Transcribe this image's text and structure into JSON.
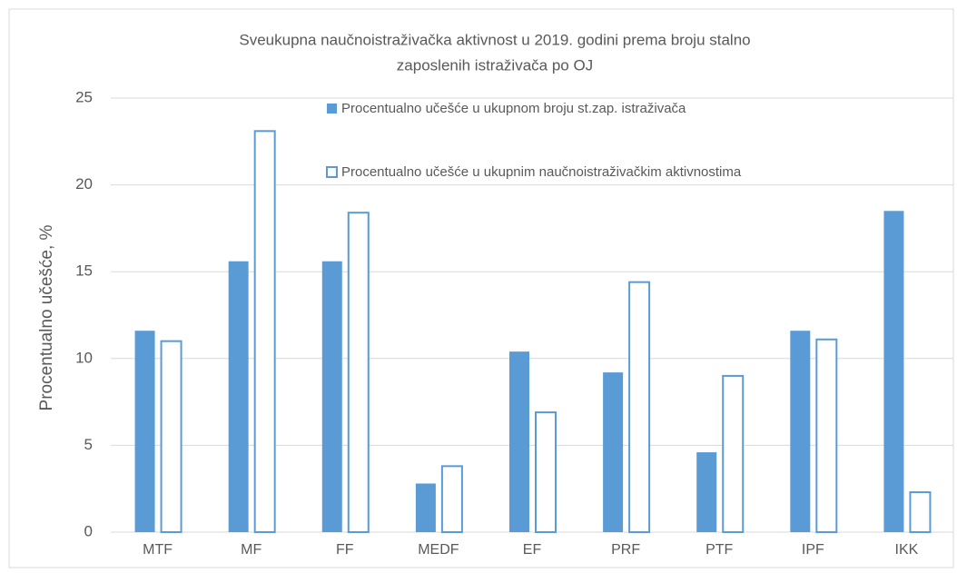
{
  "chart_data": {
    "type": "bar",
    "title": [
      "Sveukupna naučnoistraživačka aktivnost u 2019. godini prema broju stalno",
      "zaposlenih istraživača po OJ"
    ],
    "y_label": "Procentualno učešće, %",
    "categories": [
      "MTF",
      "MF",
      "FF",
      "MEDF",
      "EF",
      "PRF",
      "PTF",
      "IPF",
      "IKK"
    ],
    "series": [
      {
        "name": "Procentualno učešće u ukupnom broju st.zap. istraživača",
        "color": "#5b9bd5",
        "style": "filled",
        "values": [
          11.6,
          15.6,
          15.6,
          2.8,
          10.4,
          9.2,
          4.6,
          11.6,
          18.5
        ]
      },
      {
        "name": "Procentualno učešće u ukupnim naučnoistraživačkim aktivnostima",
        "color": "#5b9bd5",
        "style": "outline",
        "values": [
          11.0,
          23.1,
          18.4,
          3.8,
          6.9,
          14.4,
          9.0,
          11.1,
          2.3
        ]
      }
    ],
    "ylim": [
      0,
      25
    ],
    "yticks": [
      0,
      5,
      10,
      15,
      20,
      25
    ],
    "grid": true
  }
}
